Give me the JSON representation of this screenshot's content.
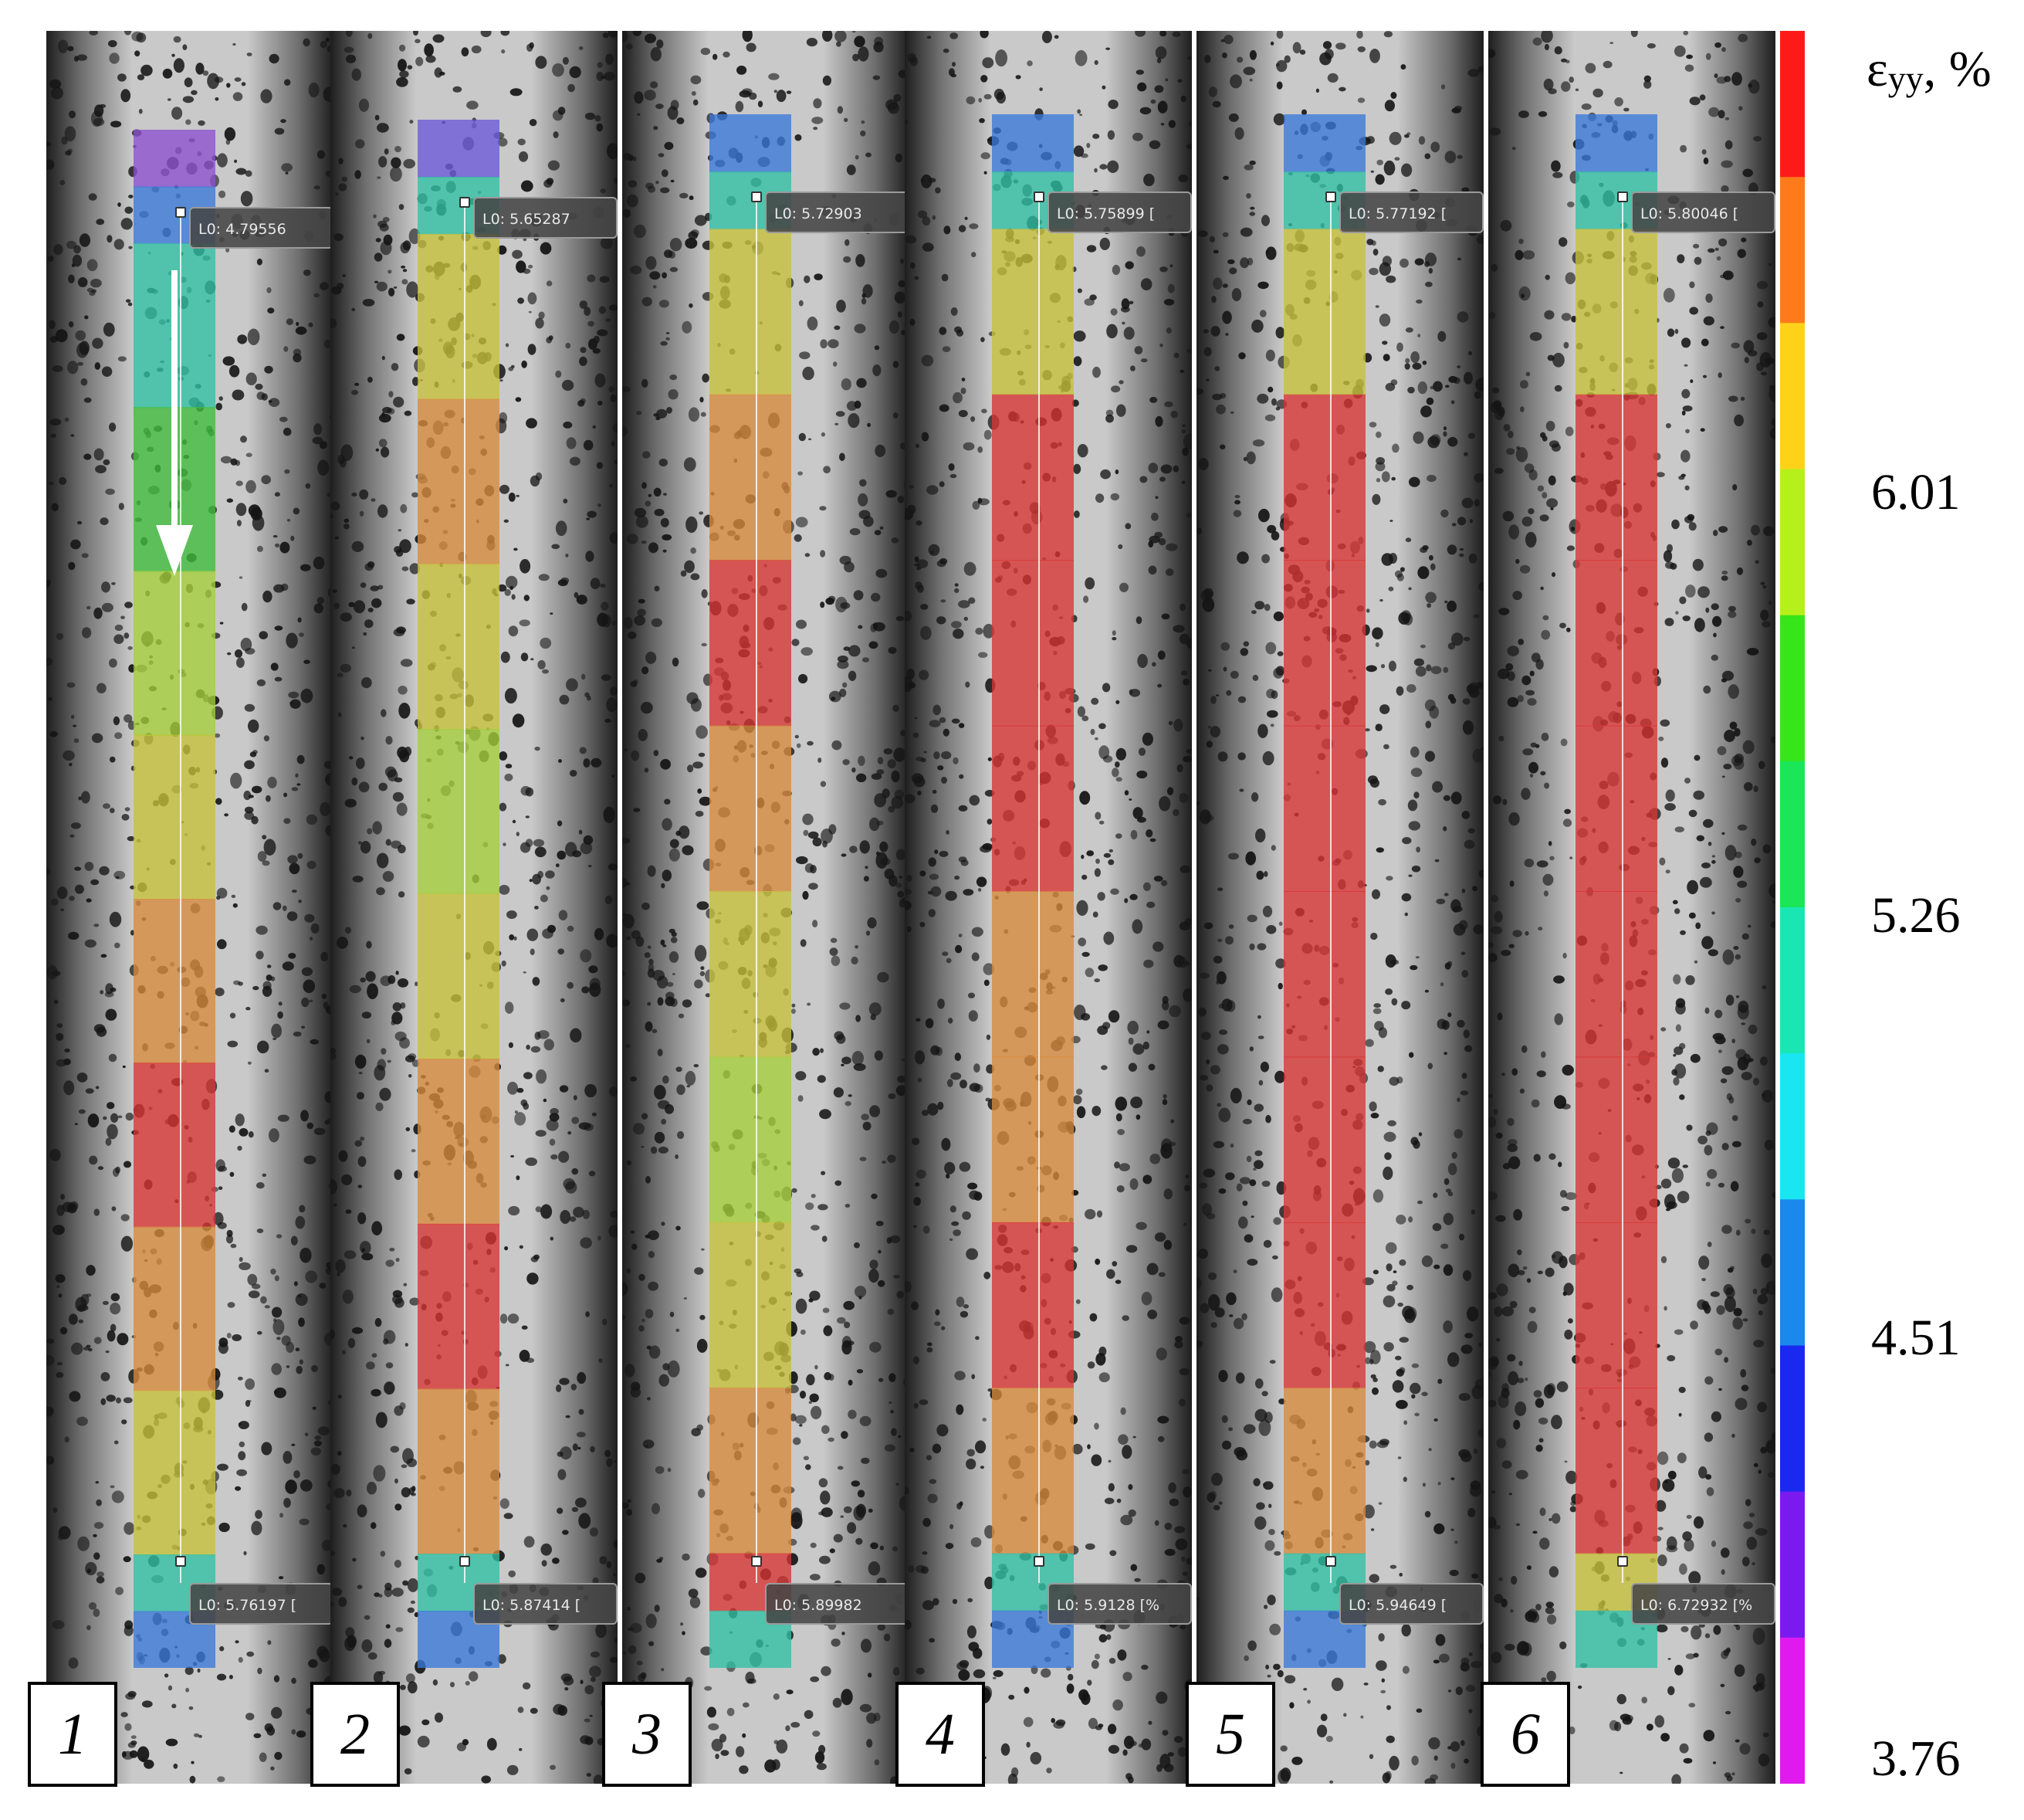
{
  "colors": {
    "background": "#ffffff",
    "specimen_gray": "#c9c9c9",
    "speckle": "#151515",
    "strain_red": "#d83535",
    "strain_orange": "#d98a3c",
    "strain_yellow": "#c8c13a",
    "strain_yellowgreen": "#a5cf38",
    "strain_green": "#3fbd3a",
    "strain_teal": "#2fc0a3",
    "strain_blue": "#3a78d8",
    "strain_violet": "#7a3fd6"
  },
  "legend": {
    "symbol": "ε",
    "subscript": "yy",
    "unit_suffix": ", %",
    "ticks": [
      "6.01",
      "5.26",
      "4.51",
      "3.76"
    ],
    "colorbar_bands": [
      "#ff1a1a",
      "#ff7a1a",
      "#ffd21a",
      "#b6f01a",
      "#37e51a",
      "#1ae658",
      "#1ae6b4",
      "#1ae6f2",
      "#1a88ec",
      "#1a28f0",
      "#7a1aee",
      "#e01aee"
    ]
  },
  "stages": [
    {
      "number": "1",
      "top_label": "L0: 4.79556",
      "bottom_label": "L0: 5.76197 [",
      "zones": [
        "#8d4fd1",
        "#3a78d8",
        "#2fc0a3",
        "#3fbd3a",
        "#a5cf38",
        "#c8c13a",
        "#d98a3c",
        "#d83535",
        "#d98a3c",
        "#c8c13a",
        "#2fc0a3",
        "#3a78d8"
      ]
    },
    {
      "number": "2",
      "top_label": "L0: 5.65287",
      "bottom_label": "L0: 5.87414 [",
      "zones": [
        "#6a58d8",
        "#2fc0a3",
        "#c8c13a",
        "#d98a3c",
        "#c8c13a",
        "#a5cf38",
        "#c8c13a",
        "#d98a3c",
        "#d83535",
        "#d98a3c",
        "#2fc0a3",
        "#3a78d8"
      ]
    },
    {
      "number": "3",
      "top_label": "L0: 5.72903",
      "bottom_label": "L0: 5.89982",
      "zones": [
        "#3a78d8",
        "#2fc0a3",
        "#c8c13a",
        "#d98a3c",
        "#d83535",
        "#d98a3c",
        "#c8c13a",
        "#a5cf38",
        "#c8c13a",
        "#d98a3c",
        "#d83535",
        "#2fc0a3"
      ]
    },
    {
      "number": "4",
      "top_label": "L0: 5.75899 [",
      "bottom_label": "L0: 5.9128 [%",
      "zones": [
        "#3a78d8",
        "#2fc0a3",
        "#c8c13a",
        "#d83535",
        "#d83535",
        "#d83535",
        "#d98a3c",
        "#d98a3c",
        "#d83535",
        "#d98a3c",
        "#2fc0a3",
        "#3a78d8"
      ]
    },
    {
      "number": "5",
      "top_label": "L0: 5.77192 [",
      "bottom_label": "L0: 5.94649 [",
      "zones": [
        "#3a78d8",
        "#2fc0a3",
        "#c8c13a",
        "#d83535",
        "#d83535",
        "#d83535",
        "#d83535",
        "#d83535",
        "#d83535",
        "#d98a3c",
        "#2fc0a3",
        "#3a78d8"
      ]
    },
    {
      "number": "6",
      "top_label": "L0: 5.80046 [",
      "bottom_label": "L0: 6.72932 [%",
      "zones": [
        "#3a78d8",
        "#2fc0a3",
        "#c8c13a",
        "#d83535",
        "#d83535",
        "#d83535",
        "#d83535",
        "#d83535",
        "#d83535",
        "#d83535",
        "#c8c13a",
        "#2fc0a3"
      ]
    }
  ]
}
